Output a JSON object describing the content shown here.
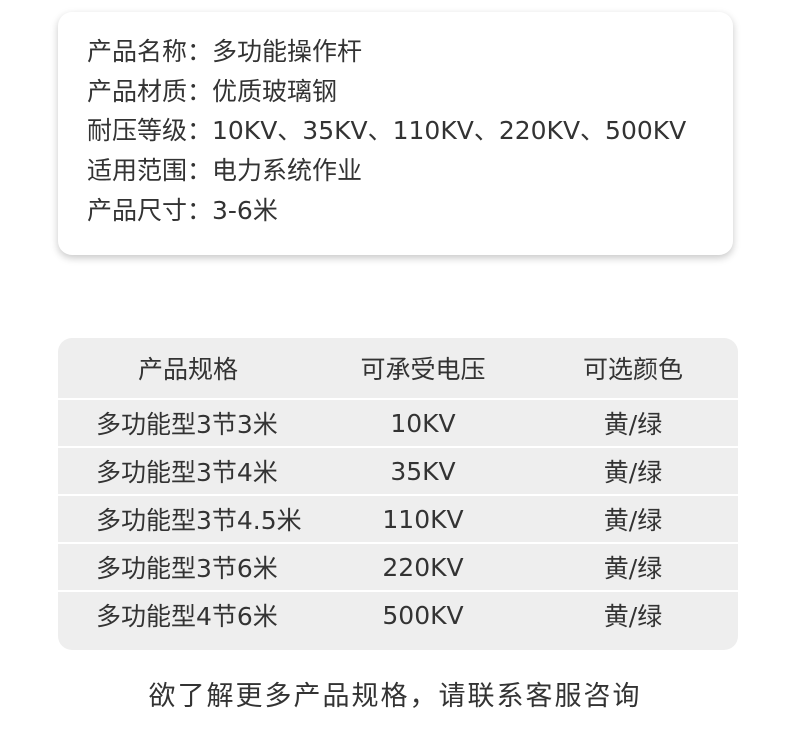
{
  "info": [
    "产品名称：多功能操作杆",
    "产品材质：优质玻璃钢",
    "耐压等级：10KV、35KV、110KV、220KV、500KV",
    "适用范围：电力系统作业",
    "产品尺寸：3-6米"
  ],
  "table": {
    "headers": [
      "产品规格",
      "可承受电压",
      "可选颜色"
    ],
    "rows": [
      [
        "多功能型3节3米",
        "10KV",
        "黄/绿"
      ],
      [
        "多功能型3节4米",
        "35KV",
        "黄/绿"
      ],
      [
        "多功能型3节4.5米",
        "110KV",
        "黄/绿"
      ],
      [
        "多功能型3节6米",
        "220KV",
        "黄/绿"
      ],
      [
        "多功能型4节6米",
        "500KV",
        "黄/绿"
      ]
    ]
  },
  "footer": "欲了解更多产品规格，请联系客服咨询"
}
